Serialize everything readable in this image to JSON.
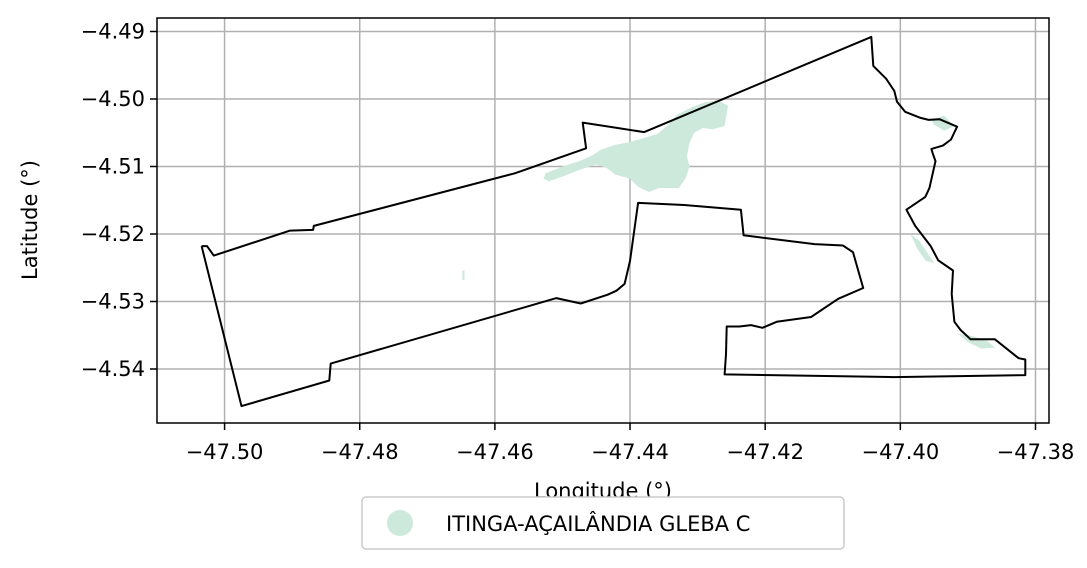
{
  "chart_data": {
    "type": "map",
    "xlabel": "Longitude (°)",
    "ylabel": "Latitude (°)",
    "xlim": [
      -47.51,
      -47.378
    ],
    "ylim": [
      -4.548,
      -4.488
    ],
    "grid": true,
    "x_ticks": [
      -47.5,
      -47.48,
      -47.46,
      -47.44,
      -47.42,
      -47.4,
      -47.38
    ],
    "x_tick_labels": [
      "−47.50",
      "−47.48",
      "−47.46",
      "−47.44",
      "−47.42",
      "−47.40",
      "−47.38"
    ],
    "y_ticks": [
      -4.49,
      -4.5,
      -4.51,
      -4.52,
      -4.53,
      -4.54
    ],
    "y_tick_labels": [
      "−4.49",
      "−4.50",
      "−4.51",
      "−4.52",
      "−4.53",
      "−4.54"
    ],
    "legend": {
      "placement": "bottom-center",
      "entries": [
        {
          "label": "ITINGA-AÇAILÂNDIA GLEBA C",
          "color": "#cde9dc"
        }
      ]
    },
    "boundary": {
      "color": "#000000",
      "coords": [
        [
          -47.5034,
          -4.5218
        ],
        [
          -47.5026,
          -4.5218
        ],
        [
          -47.5016,
          -4.5232
        ],
        [
          -47.4903,
          -4.5195
        ],
        [
          -47.4869,
          -4.5194
        ],
        [
          -47.4868,
          -4.5188
        ],
        [
          -47.457,
          -4.511
        ],
        [
          -47.4465,
          -4.5073
        ],
        [
          -47.447,
          -4.5035
        ],
        [
          -47.4379,
          -4.5049
        ],
        [
          -47.4043,
          -4.4908
        ],
        [
          -47.404,
          -4.4951
        ],
        [
          -47.4021,
          -4.497
        ],
        [
          -47.4009,
          -4.4988
        ],
        [
          -47.4005,
          -4.5004
        ],
        [
          -47.3993,
          -4.5019
        ],
        [
          -47.397,
          -4.5028
        ],
        [
          -47.3958,
          -4.5031
        ],
        [
          -47.3942,
          -4.503
        ],
        [
          -47.3916,
          -4.5041
        ],
        [
          -47.3925,
          -4.506
        ],
        [
          -47.3937,
          -4.5069
        ],
        [
          -47.3954,
          -4.5074
        ],
        [
          -47.3952,
          -4.5081
        ],
        [
          -47.3948,
          -4.5092
        ],
        [
          -47.3957,
          -4.5132
        ],
        [
          -47.3963,
          -4.5145
        ],
        [
          -47.3991,
          -4.5164
        ],
        [
          -47.3978,
          -4.5188
        ],
        [
          -47.3955,
          -4.5218
        ],
        [
          -47.3944,
          -4.5239
        ],
        [
          -47.3922,
          -4.5254
        ],
        [
          -47.3924,
          -4.5289
        ],
        [
          -47.392,
          -4.533
        ],
        [
          -47.3911,
          -4.5342
        ],
        [
          -47.3896,
          -4.5356
        ],
        [
          -47.386,
          -4.5356
        ],
        [
          -47.3825,
          -4.5384
        ],
        [
          -47.3815,
          -4.5386
        ],
        [
          -47.3815,
          -4.5409
        ],
        [
          -47.401,
          -4.5412
        ],
        [
          -47.426,
          -4.5408
        ],
        [
          -47.4258,
          -4.5378
        ],
        [
          -47.4257,
          -4.5337
        ],
        [
          -47.4238,
          -4.5337
        ],
        [
          -47.4221,
          -4.5335
        ],
        [
          -47.4204,
          -4.5339
        ],
        [
          -47.4183,
          -4.533
        ],
        [
          -47.4132,
          -4.5323
        ],
        [
          -47.4092,
          -4.5296
        ],
        [
          -47.4055,
          -4.528
        ],
        [
          -47.407,
          -4.5227
        ],
        [
          -47.4085,
          -4.5217
        ],
        [
          -47.4127,
          -4.5215
        ],
        [
          -47.4232,
          -4.5202
        ],
        [
          -47.4236,
          -4.5164
        ],
        [
          -47.432,
          -4.5157
        ],
        [
          -47.4388,
          -4.5154
        ],
        [
          -47.44,
          -4.524
        ],
        [
          -47.4408,
          -4.5274
        ],
        [
          -47.442,
          -4.5284
        ],
        [
          -47.4433,
          -4.529
        ],
        [
          -47.4473,
          -4.5303
        ],
        [
          -47.4509,
          -4.5295
        ],
        [
          -47.4843,
          -4.5392
        ],
        [
          -47.4845,
          -4.5417
        ],
        [
          -47.4975,
          -4.5455
        ],
        [
          -47.5034,
          -4.5218
        ]
      ]
    },
    "areas": [
      {
        "name": "ITINGA-AÇAILÂNDIA GLEBA C",
        "color": "#cde9dc",
        "polygons": [
          [
            [
              -47.4525,
              -4.511
            ],
            [
              -47.45,
              -4.51
            ],
            [
              -47.4475,
              -4.5092
            ],
            [
              -47.4455,
              -4.5083
            ],
            [
              -47.4443,
              -4.5075
            ],
            [
              -47.4422,
              -4.5068
            ],
            [
              -47.4402,
              -4.5064
            ],
            [
              -47.438,
              -4.5058
            ],
            [
              -47.436,
              -4.5052
            ],
            [
              -47.4345,
              -4.504
            ],
            [
              -47.433,
              -4.5023
            ],
            [
              -47.431,
              -4.5013
            ],
            [
              -47.429,
              -4.5005
            ],
            [
              -47.427,
              -4.5002
            ],
            [
              -47.4255,
              -4.501
            ],
            [
              -47.426,
              -4.504
            ],
            [
              -47.4278,
              -4.5045
            ],
            [
              -47.4292,
              -4.5043
            ],
            [
              -47.4305,
              -4.505
            ],
            [
              -47.4312,
              -4.5065
            ],
            [
              -47.4316,
              -4.5085
            ],
            [
              -47.4312,
              -4.51
            ],
            [
              -47.4318,
              -4.5118
            ],
            [
              -47.4328,
              -4.5132
            ],
            [
              -47.4358,
              -4.5132
            ],
            [
              -47.4372,
              -4.5138
            ],
            [
              -47.4388,
              -4.513
            ],
            [
              -47.44,
              -4.5118
            ],
            [
              -47.4422,
              -4.5112
            ],
            [
              -47.4435,
              -4.5102
            ],
            [
              -47.445,
              -4.5097
            ],
            [
              -47.4475,
              -4.5105
            ],
            [
              -47.45,
              -4.5115
            ],
            [
              -47.452,
              -4.5122
            ],
            [
              -47.4528,
              -4.5118
            ]
          ],
          [
            [
              -47.4648,
              -4.5254
            ],
            [
              -47.4645,
              -4.5254
            ],
            [
              -47.4645,
              -4.5268
            ],
            [
              -47.4648,
              -4.5268
            ]
          ],
          [
            [
              -47.3955,
              -4.503
            ],
            [
              -47.3935,
              -4.5025
            ],
            [
              -47.392,
              -4.504
            ],
            [
              -47.3935,
              -4.5047
            ],
            [
              -47.395,
              -4.5038
            ]
          ],
          [
            [
              -47.3985,
              -4.52
            ],
            [
              -47.3975,
              -4.5222
            ],
            [
              -47.3962,
              -4.524
            ],
            [
              -47.395,
              -4.5243
            ],
            [
              -47.396,
              -4.5228
            ],
            [
              -47.3972,
              -4.521
            ]
          ],
          [
            [
              -47.3915,
              -4.5348
            ],
            [
              -47.39,
              -4.536
            ],
            [
              -47.388,
              -4.537
            ],
            [
              -47.386,
              -4.5368
            ],
            [
              -47.3872,
              -4.5358
            ],
            [
              -47.3898,
              -4.535
            ]
          ]
        ]
      }
    ]
  }
}
